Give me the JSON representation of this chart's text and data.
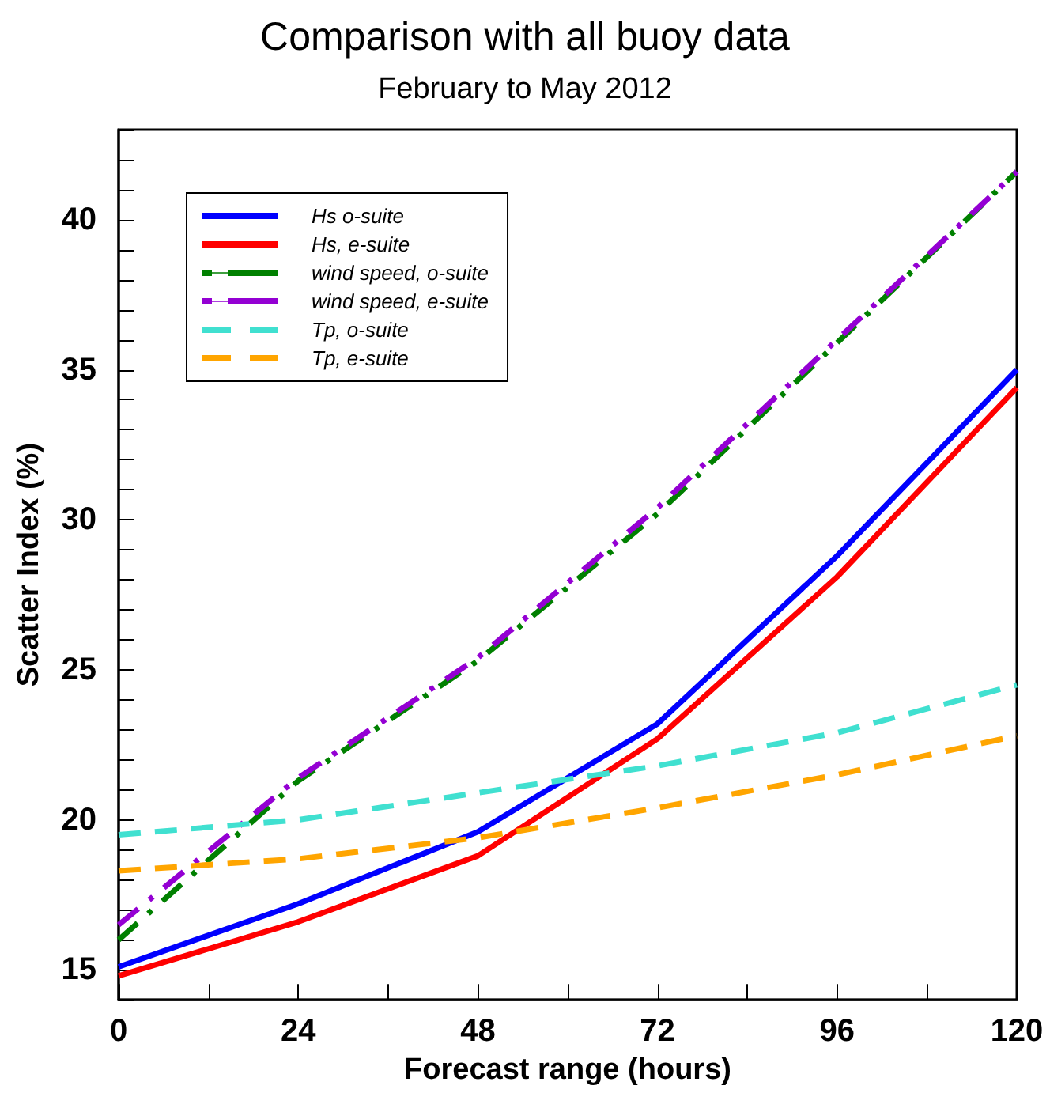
{
  "chart_data": {
    "type": "line",
    "title": "Comparison with all buoy data",
    "subtitle": "February to May 2012",
    "xlabel": "Forecast range (hours)",
    "ylabel": "Scatter Index (%)",
    "x": [
      0,
      24,
      48,
      72,
      96,
      120
    ],
    "series": [
      {
        "name": "Hs o-suite",
        "color": "#0000ff",
        "line_style": "solid",
        "values": [
          15.1,
          17.2,
          19.6,
          23.2,
          28.8,
          35.0
        ]
      },
      {
        "name": "Hs, e-suite",
        "color": "#ff0000",
        "line_style": "solid",
        "values": [
          14.8,
          16.6,
          18.8,
          22.7,
          28.1,
          34.4
        ]
      },
      {
        "name": "wind speed, o-suite",
        "color": "#008000",
        "line_style": "dashdot",
        "values": [
          16.0,
          21.3,
          25.3,
          30.2,
          35.9,
          41.6
        ]
      },
      {
        "name": "wind speed, e-suite",
        "color": "#9400d3",
        "line_style": "dashdot",
        "values": [
          16.5,
          21.4,
          25.4,
          30.4,
          36.0,
          41.6
        ]
      },
      {
        "name": "Tp, o-suite",
        "color": "#40e0d0",
        "line_style": "dashed",
        "values": [
          19.5,
          20.0,
          20.9,
          21.8,
          22.9,
          24.5
        ]
      },
      {
        "name": "Tp, e-suite",
        "color": "#ffa500",
        "line_style": "dashed",
        "values": [
          18.3,
          18.7,
          19.4,
          20.4,
          21.5,
          22.8
        ]
      }
    ],
    "xlim": [
      0,
      120
    ],
    "xticks": [
      0,
      {
        "value": 12,
        "label": null
      },
      24,
      {
        "value": 36,
        "label": null
      },
      48,
      {
        "value": 60,
        "label": null
      },
      72,
      {
        "value": 84,
        "label": null
      },
      96,
      {
        "value": 108,
        "label": null
      },
      120
    ],
    "ylim": [
      14,
      43
    ],
    "yticks": [
      {
        "value": 14,
        "label": null
      },
      15,
      {
        "value": 16,
        "label": null
      },
      {
        "value": 17,
        "label": null
      },
      {
        "value": 18,
        "label": null
      },
      {
        "value": 19,
        "label": null
      },
      20,
      {
        "value": 21,
        "label": null
      },
      {
        "value": 22,
        "label": null
      },
      {
        "value": 23,
        "label": null
      },
      {
        "value": 24,
        "label": null
      },
      25,
      {
        "value": 26,
        "label": null
      },
      {
        "value": 27,
        "label": null
      },
      {
        "value": 28,
        "label": null
      },
      {
        "value": 29,
        "label": null
      },
      30,
      {
        "value": 31,
        "label": null
      },
      {
        "value": 32,
        "label": null
      },
      {
        "value": 33,
        "label": null
      },
      {
        "value": 34,
        "label": null
      },
      35,
      {
        "value": 36,
        "label": null
      },
      {
        "value": 37,
        "label": null
      },
      {
        "value": 38,
        "label": null
      },
      {
        "value": 39,
        "label": null
      },
      40,
      {
        "value": 41,
        "label": null
      },
      {
        "value": 42,
        "label": null
      },
      {
        "value": 43,
        "label": null
      }
    ],
    "legend": "top left",
    "grid": false,
    "marker": "none"
  }
}
